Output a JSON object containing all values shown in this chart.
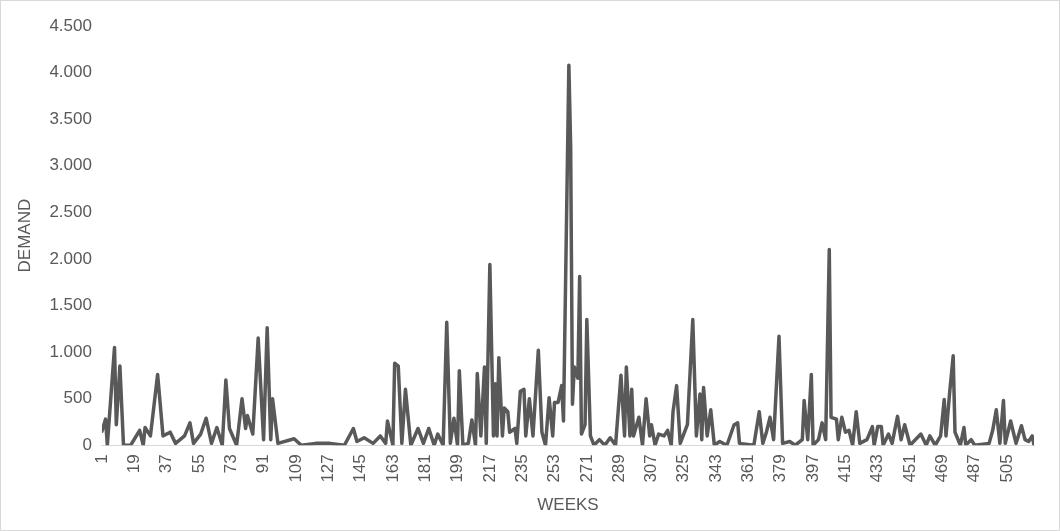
{
  "chart_data": {
    "type": "line",
    "xlabel": "WEEKS",
    "ylabel": "DEMAND",
    "x": [
      1,
      3,
      4,
      8,
      9,
      11,
      13,
      17,
      22,
      24,
      25,
      28,
      32,
      35,
      39,
      42,
      47,
      50,
      52,
      56,
      59,
      62,
      65,
      68,
      70,
      72,
      76,
      79,
      81,
      82,
      85,
      88,
      91,
      93,
      95,
      96,
      99,
      108,
      112,
      120,
      128,
      136,
      141,
      143,
      147,
      152,
      156,
      159,
      160,
      163,
      164,
      166,
      168,
      170,
      173,
      177,
      180,
      183,
      186,
      188,
      191,
      193,
      195,
      197,
      199,
      200,
      202,
      205,
      207,
      209,
      210,
      212,
      214,
      215,
      217,
      219,
      220,
      221,
      222,
      224,
      225,
      227,
      228,
      231,
      232,
      234,
      236,
      237,
      239,
      241,
      244,
      246,
      248,
      250,
      252,
      253,
      255,
      257,
      258,
      261,
      262,
      263,
      264,
      266,
      267,
      268,
      270,
      271,
      273,
      275,
      278,
      281,
      284,
      287,
      290,
      292,
      293,
      295,
      296,
      297,
      300,
      302,
      304,
      306,
      307,
      309,
      311,
      314,
      316,
      318,
      319,
      321,
      323,
      327,
      330,
      332,
      334,
      335,
      336,
      338,
      340,
      342,
      345,
      349,
      353,
      355,
      356,
      364,
      367,
      369,
      371,
      373,
      375,
      378,
      380,
      384,
      387,
      391,
      392,
      394,
      396,
      397,
      400,
      402,
      404,
      406,
      407,
      410,
      411,
      413,
      415,
      417,
      419,
      421,
      423,
      427,
      430,
      431,
      433,
      435,
      436,
      439,
      441,
      444,
      446,
      448,
      451,
      457,
      460,
      462,
      465,
      468,
      470,
      471,
      473,
      475,
      476,
      479,
      481,
      482,
      485,
      487,
      495,
      497,
      499,
      501,
      503,
      504,
      507,
      510,
      513,
      515,
      517,
      519,
      520
    ],
    "series": [
      {
        "color": "#595959",
        "values": [
          150,
          280,
          0,
          1050,
          220,
          850,
          0,
          0,
          160,
          0,
          190,
          100,
          760,
          100,
          140,
          20,
          100,
          240,
          20,
          120,
          290,
          20,
          190,
          0,
          700,
          180,
          0,
          500,
          180,
          320,
          120,
          1150,
          60,
          1260,
          60,
          500,
          20,
          70,
          0,
          20,
          20,
          0,
          180,
          40,
          80,
          20,
          100,
          20,
          260,
          0,
          880,
          850,
          20,
          600,
          0,
          180,
          20,
          180,
          0,
          120,
          0,
          1320,
          20,
          290,
          0,
          800,
          0,
          20,
          270,
          0,
          770,
          100,
          840,
          20,
          1940,
          100,
          660,
          100,
          940,
          100,
          400,
          360,
          140,
          180,
          20,
          580,
          600,
          100,
          500,
          100,
          1020,
          140,
          0,
          510,
          100,
          460,
          460,
          640,
          260,
          4080,
          3200,
          440,
          840,
          720,
          1810,
          120,
          220,
          1350,
          100,
          0,
          60,
          0,
          80,
          0,
          750,
          100,
          840,
          100,
          600,
          100,
          300,
          0,
          500,
          100,
          220,
          0,
          120,
          100,
          160,
          0,
          360,
          640,
          20,
          220,
          1350,
          100,
          550,
          60,
          620,
          100,
          380,
          0,
          40,
          0,
          220,
          240,
          20,
          0,
          360,
          20,
          140,
          300,
          60,
          1170,
          20,
          40,
          0,
          60,
          480,
          60,
          760,
          0,
          60,
          240,
          60,
          2100,
          300,
          280,
          60,
          300,
          140,
          160,
          0,
          360,
          20,
          60,
          200,
          0,
          200,
          200,
          0,
          120,
          20,
          310,
          60,
          220,
          0,
          120,
          0,
          100,
          0,
          100,
          490,
          100,
          560,
          960,
          140,
          0,
          190,
          0,
          60,
          0,
          20,
          160,
          380,
          20,
          480,
          20,
          260,
          20,
          210,
          60,
          40,
          100,
          0
        ]
      }
    ],
    "xlim": [
      1,
      520
    ],
    "xticks": [
      1,
      19,
      37,
      55,
      73,
      91,
      109,
      127,
      145,
      163,
      181,
      199,
      217,
      235,
      253,
      271,
      289,
      307,
      325,
      343,
      361,
      379,
      397,
      415,
      433,
      451,
      469,
      487,
      505
    ],
    "ylim": [
      0,
      4500
    ],
    "yticks": [
      0,
      500,
      {
        "value": 1000,
        "label": "1.000"
      },
      {
        "value": 1500,
        "label": "1.500"
      },
      {
        "value": 2000,
        "label": "2.000"
      },
      {
        "value": 2500,
        "label": "2.500"
      },
      {
        "value": 3000,
        "label": "3.000"
      },
      {
        "value": 3500,
        "label": "3.500"
      },
      {
        "value": 4000,
        "label": "4.000"
      },
      {
        "value": 4500,
        "label": "4.500"
      }
    ],
    "grid": false,
    "legend": false,
    "marker": "none",
    "line_style": "solid"
  }
}
